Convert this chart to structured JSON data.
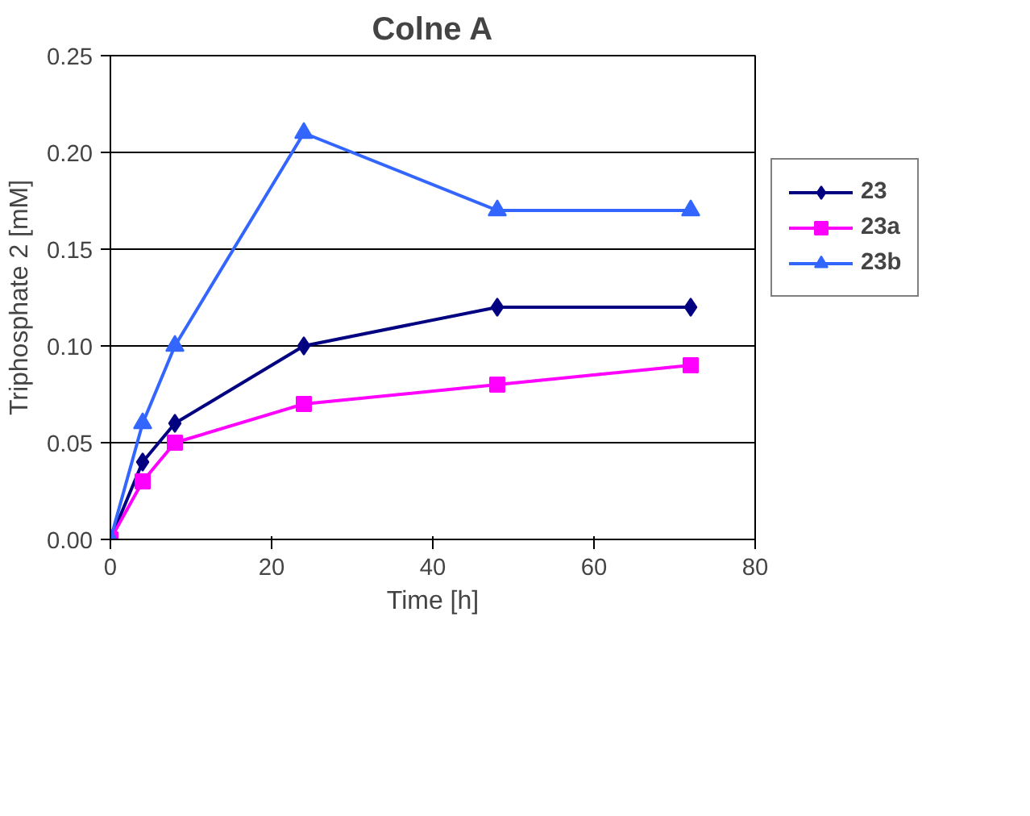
{
  "chart_data": {
    "type": "line",
    "title": "Colne A",
    "xlabel": "Time [h]",
    "ylabel": "Triphosphate 2 [mM]",
    "x": [
      0,
      4,
      8,
      24,
      48,
      72
    ],
    "series": [
      {
        "name": "23",
        "color": "#000080",
        "marker": "diamond",
        "values": [
          0,
          0.04,
          0.06,
          0.1,
          0.12,
          0.12
        ]
      },
      {
        "name": "23a",
        "color": "#ff00ff",
        "marker": "square",
        "values": [
          0,
          0.03,
          0.05,
          0.07,
          0.08,
          0.09
        ]
      },
      {
        "name": "23b",
        "color": "#3366ff",
        "marker": "triangle",
        "values": [
          0,
          0.06,
          0.1,
          0.21,
          0.17,
          0.17
        ]
      }
    ],
    "xlim": [
      0,
      80
    ],
    "xticks": [
      0,
      20,
      40,
      60,
      80
    ],
    "ylim": [
      0,
      0.25
    ],
    "yticks": [
      {
        "value": 0,
        "label": "0.00"
      },
      0.05,
      {
        "value": 0.1,
        "label": "0.10"
      },
      0.15,
      {
        "value": 0.2,
        "label": "0.20"
      },
      0.25
    ],
    "grid": "y",
    "legend": "right",
    "line_style": "solid"
  }
}
